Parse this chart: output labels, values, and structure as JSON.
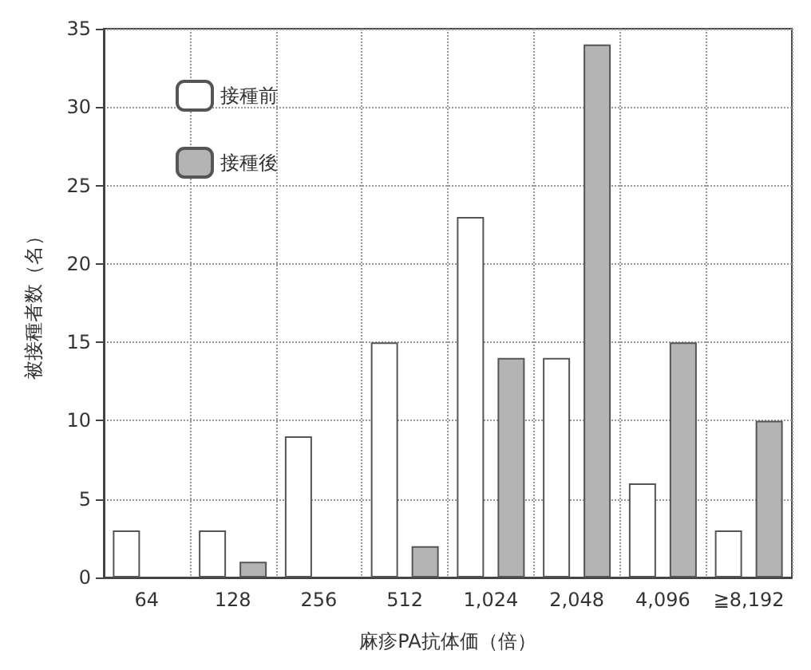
{
  "chart_data": {
    "type": "bar",
    "xlabel": "麻疹PA抗体価（倍）",
    "ylabel": "被接種者数（名）",
    "categories": [
      "64",
      "128",
      "256",
      "512",
      "1,024",
      "2,048",
      "4,096",
      "≧8,192"
    ],
    "series": [
      {
        "name": "接種前",
        "color": "#ffffff",
        "values": [
          3,
          3,
          9,
          15,
          23,
          14,
          6,
          3
        ]
      },
      {
        "name": "接種後",
        "color": "#b4b4b4",
        "values": [
          0,
          1,
          0,
          2,
          14,
          34,
          15,
          10
        ]
      }
    ],
    "ylim": [
      0,
      35
    ],
    "yticks": [
      0,
      5,
      10,
      15,
      20,
      25,
      30,
      35
    ],
    "grid": true,
    "legend": "top left"
  }
}
